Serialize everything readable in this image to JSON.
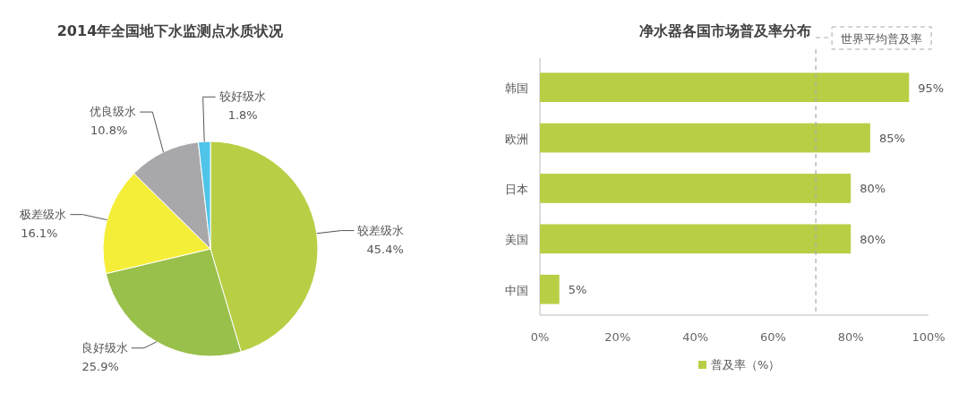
{
  "chart_data": [
    {
      "type": "pie",
      "title": "2014年全国地下水监测点水质状况",
      "categories": [
        "较差级水",
        "良好级水",
        "极差级水",
        "优良级水",
        "较好级水"
      ],
      "values": [
        45.4,
        25.9,
        16.1,
        10.8,
        1.8
      ],
      "colors": [
        "#b8cf45",
        "#99c04a",
        "#f5ee38",
        "#a8a8ab",
        "#4fc3e8"
      ],
      "value_labels": [
        "45.4%",
        "25.9%",
        "16.1%",
        "10.8%",
        "1.8%"
      ]
    },
    {
      "type": "bar",
      "orientation": "horizontal",
      "title": "净水器各国市场普及率分布",
      "categories": [
        "韩国",
        "欧洲",
        "日本",
        "美国",
        "中国"
      ],
      "series": [
        {
          "name": "普及率（%）",
          "color": "#b8cf45",
          "values": [
            95,
            85,
            80,
            80,
            5
          ],
          "value_labels": [
            "95%",
            "85%",
            "80%",
            "80%",
            "5%"
          ]
        }
      ],
      "xlim": [
        0,
        100
      ],
      "xticks": [
        {
          "value": 0,
          "label": "0%"
        },
        {
          "value": 20,
          "label": "20%"
        },
        {
          "value": 40,
          "label": "40%"
        },
        {
          "value": 60,
          "label": "60%"
        },
        {
          "value": 80,
          "label": "80%"
        },
        {
          "value": 100,
          "label": "100%"
        }
      ],
      "ref_lines": [
        {
          "axis": "x",
          "value": 71,
          "label": "世界平均普及率",
          "color": "#aaaaaa",
          "line_style": "dashed"
        }
      ],
      "grid": false,
      "legend": "bottom"
    }
  ]
}
